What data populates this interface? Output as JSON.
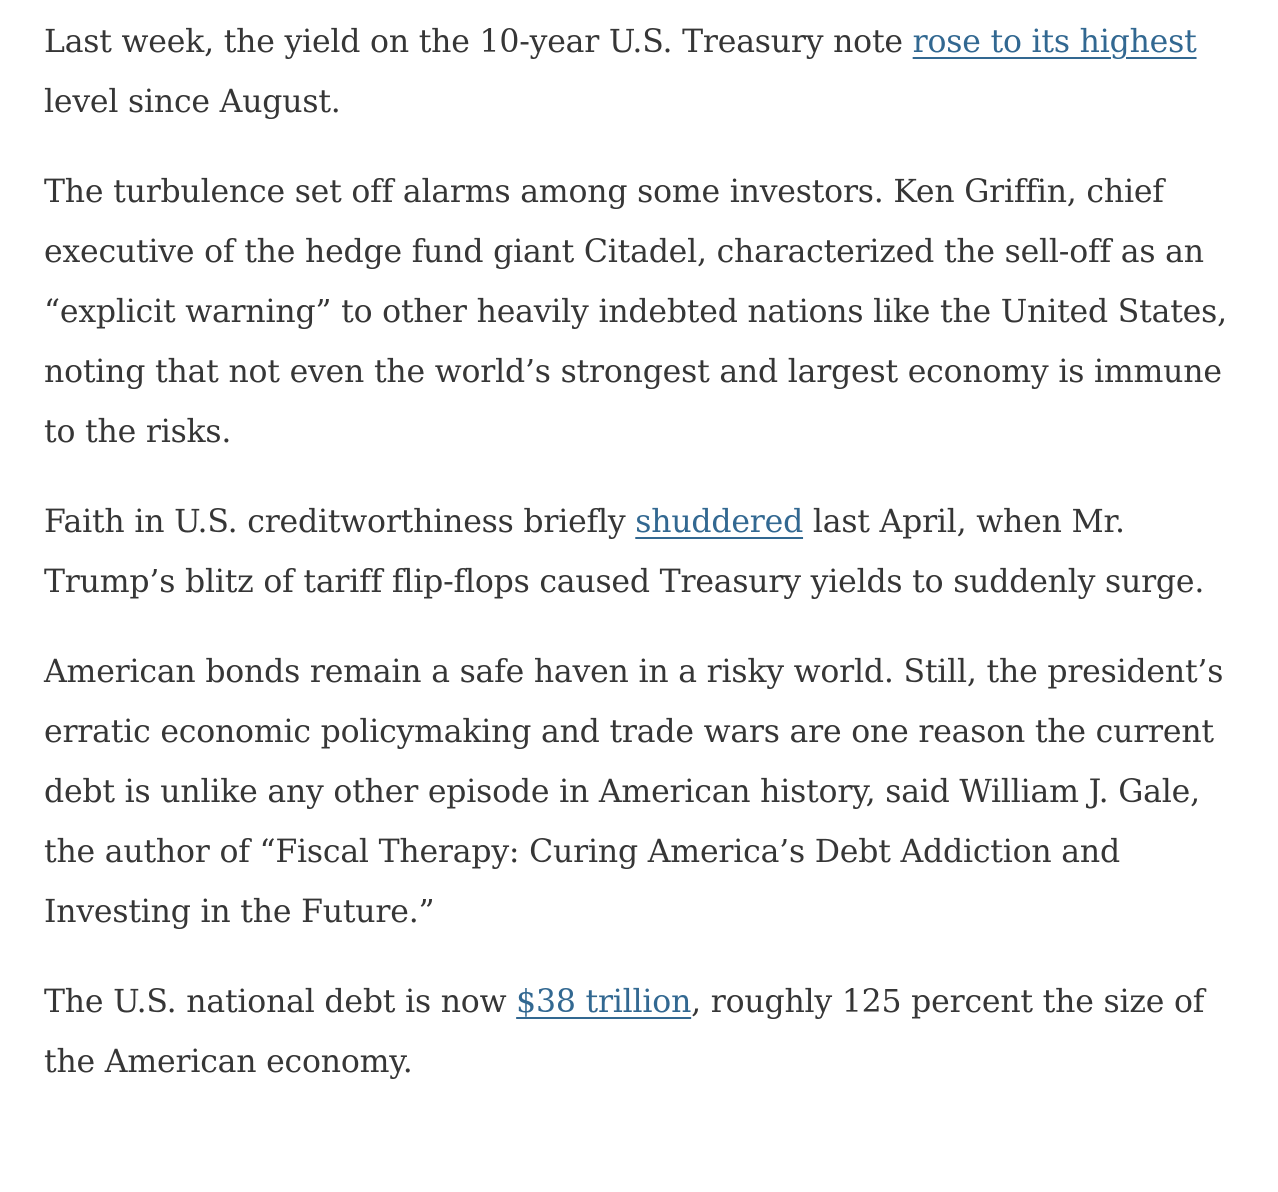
{
  "paragraphs": [
    {
      "segments": [
        {
          "text": "Last week, the yield on the 10-year U.S. Treasury note "
        },
        {
          "link": "rose to its highest"
        },
        {
          "text": " level since August."
        }
      ]
    },
    {
      "segments": [
        {
          "text": "The turbulence set off alarms among some investors. Ken Griffin, chief executive of the hedge fund giant Citadel, characterized the sell-off as an “explicit warning” to other heavily indebted nations like the United States, noting that not even the world’s strongest and largest economy is immune to the risks."
        }
      ]
    },
    {
      "segments": [
        {
          "text": "Faith in U.S. creditworthiness briefly "
        },
        {
          "link": "shuddered"
        },
        {
          "text": " last April, when Mr. Trump’s blitz of tariff flip-flops caused Treasury yields to suddenly surge."
        }
      ]
    },
    {
      "segments": [
        {
          "text": "American bonds remain a safe haven in a risky world. Still, the president’s erratic economic policymaking and trade wars are one reason the current debt is unlike any other episode in American history, said William J. Gale, the author of “Fiscal Therapy: Curing America’s Debt Addiction and Investing in the Future.”"
        }
      ]
    },
    {
      "segments": [
        {
          "text": "The U.S. national debt is now "
        },
        {
          "link": "$38 trillion"
        },
        {
          "text": ", roughly 125 percent the size of the American economy."
        }
      ]
    }
  ]
}
